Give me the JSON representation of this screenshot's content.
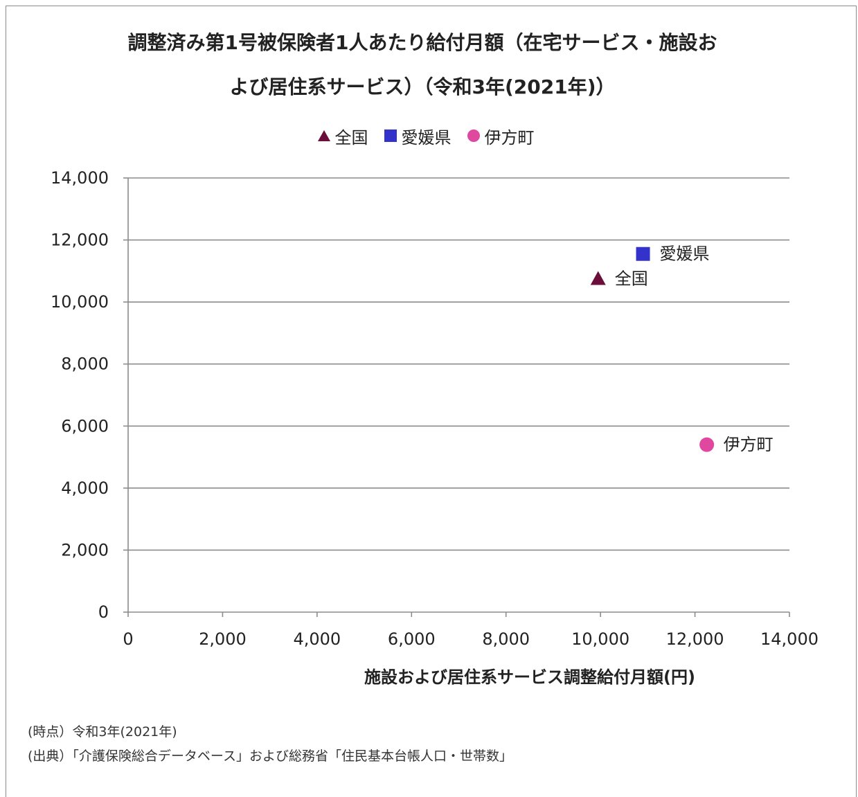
{
  "chart_data": {
    "type": "scatter",
    "title_line1": "調整済み第1号被保険者1人あたり給付月額（在宅サービス・施設お",
    "title_line2": "よび居住系サービス）（令和3年(2021年)）",
    "xlabel": "施設および居住系サービス調整給付月額(円)",
    "ylabel": "",
    "xlim": [
      0,
      14000
    ],
    "ylim": [
      0,
      14000
    ],
    "xticks": [
      0,
      2000,
      4000,
      6000,
      8000,
      10000,
      12000,
      14000
    ],
    "yticks": [
      0,
      2000,
      4000,
      6000,
      8000,
      10000,
      12000,
      14000
    ],
    "xtick_labels": [
      "0",
      "2,000",
      "4,000",
      "6,000",
      "8,000",
      "10,000",
      "12,000",
      "14,000"
    ],
    "ytick_labels": [
      "0",
      "2,000",
      "4,000",
      "6,000",
      "8,000",
      "10,000",
      "12,000",
      "14,000"
    ],
    "grid": "horizontal",
    "legend_position": "top-center",
    "series": [
      {
        "name": "全国",
        "marker": "triangle-icon",
        "color": "#6b0f3a",
        "points": [
          {
            "x": 9950,
            "y": 10750,
            "label": "全国"
          }
        ]
      },
      {
        "name": "愛媛県",
        "marker": "square-icon",
        "color": "#3333cc",
        "points": [
          {
            "x": 10900,
            "y": 11550,
            "label": "愛媛県"
          }
        ]
      },
      {
        "name": "伊方町",
        "marker": "circle-icon",
        "color": "#e0479e",
        "points": [
          {
            "x": 12250,
            "y": 5400,
            "label": "伊方町"
          }
        ]
      }
    ]
  },
  "notes": {
    "time_point": "(時点）令和3年(2021年)",
    "source": "(出典）「介護保険総合データベース」および総務省「住民基本台帳人口・世帯数」"
  }
}
